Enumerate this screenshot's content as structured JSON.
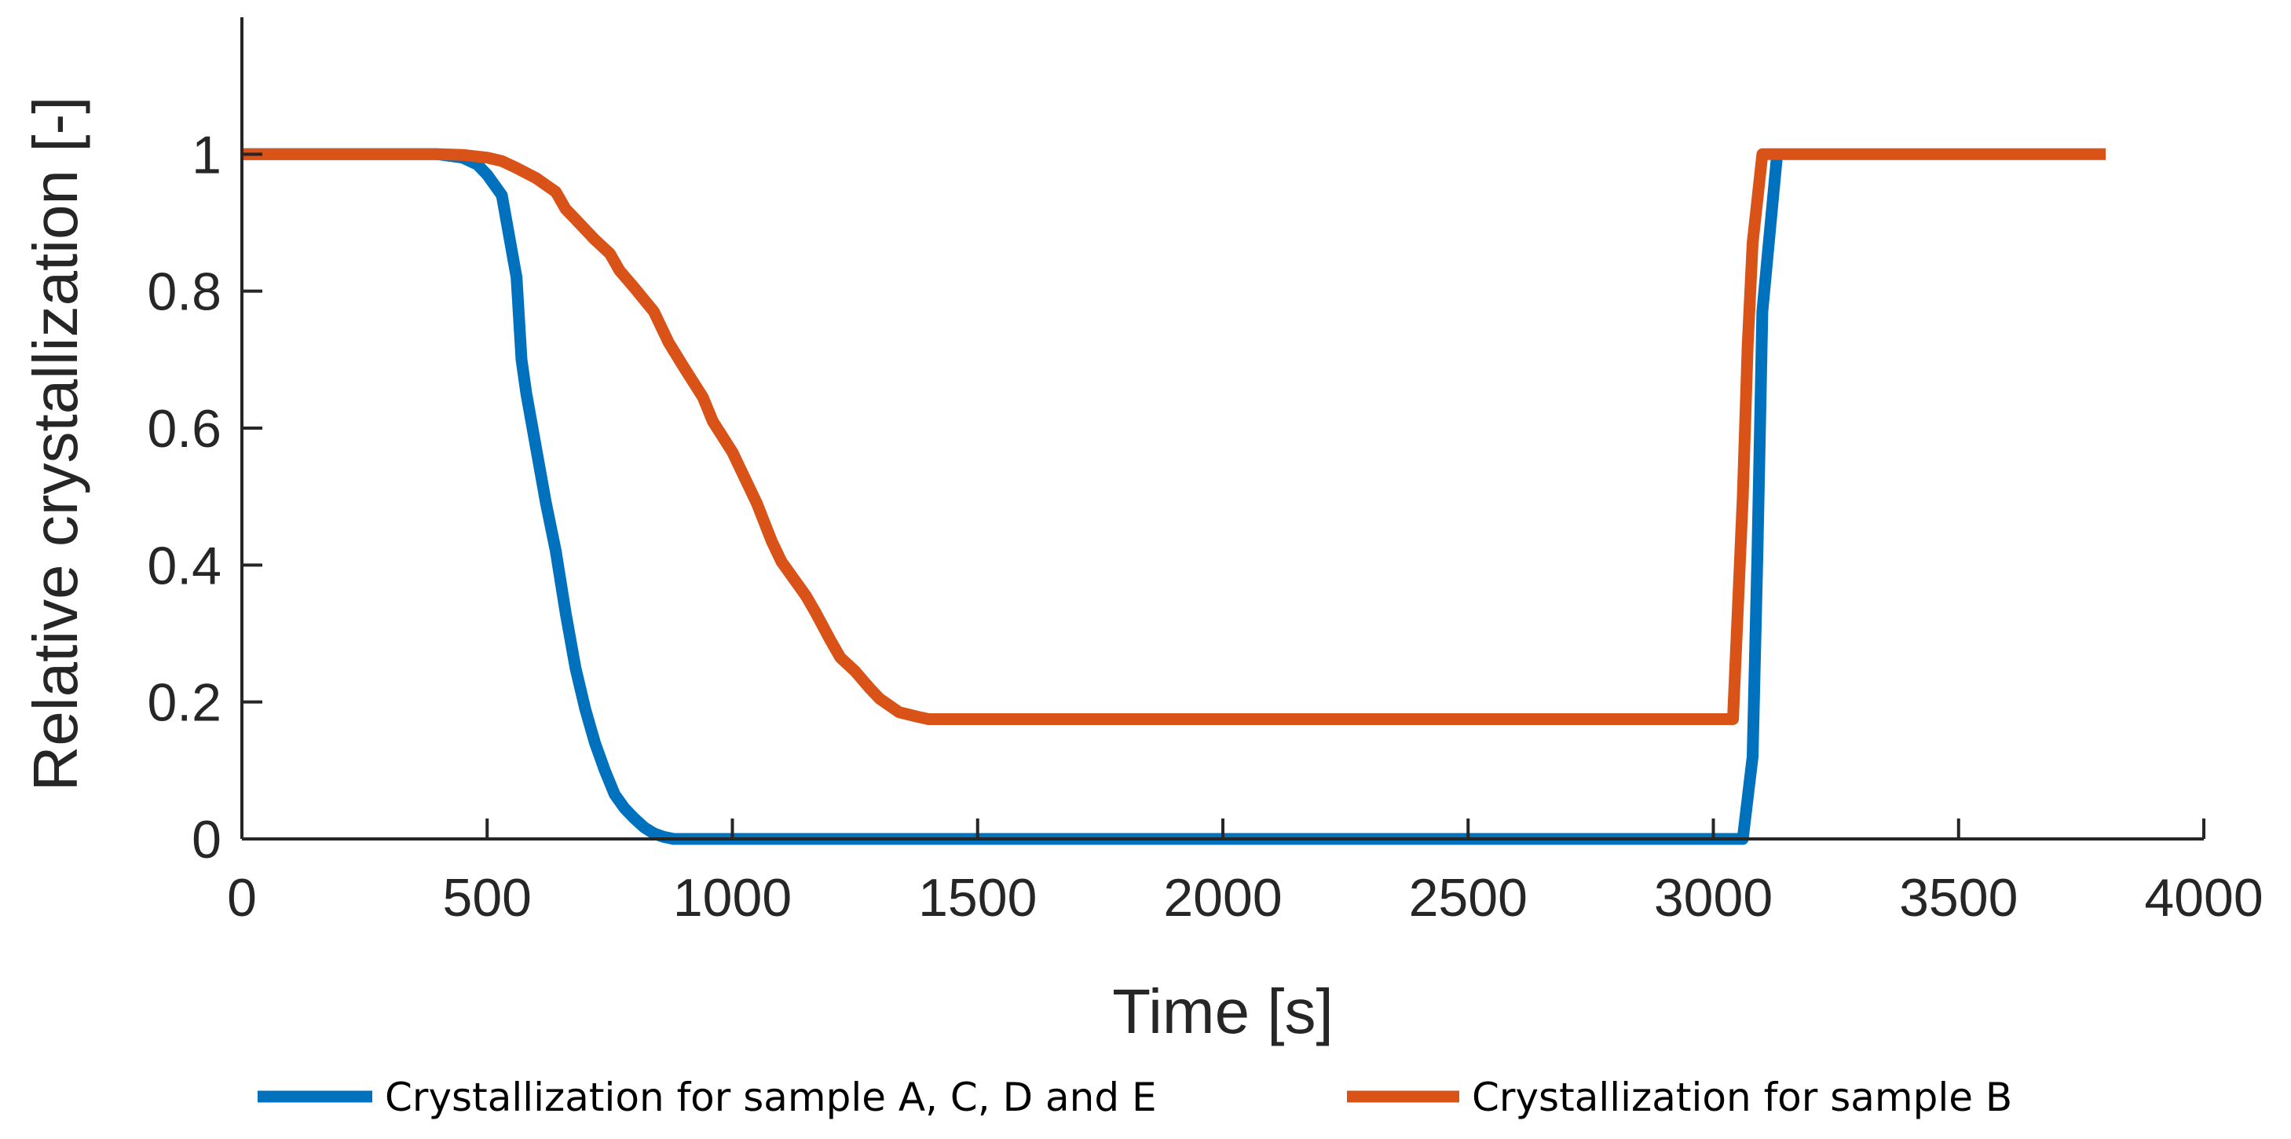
{
  "chart_data": {
    "type": "line",
    "title": "",
    "xlabel": "Time [s]",
    "ylabel": "Relative crystallization [-]",
    "xlim": [
      0,
      4000
    ],
    "ylim": [
      0,
      1.2
    ],
    "grid": false,
    "legend_position": "bottom",
    "xticks": [
      {
        "value": 0,
        "label": "0"
      },
      {
        "value": 500,
        "label": "500"
      },
      {
        "value": 1000,
        "label": "1000"
      },
      {
        "value": 1500,
        "label": "1500"
      },
      {
        "value": 2000,
        "label": "2000"
      },
      {
        "value": 2500,
        "label": "2500"
      },
      {
        "value": 3000,
        "label": "3000"
      },
      {
        "value": 3500,
        "label": "3500"
      },
      {
        "value": 4000,
        "label": "4000"
      }
    ],
    "yticks": [
      {
        "value": 0,
        "label": "0"
      },
      {
        "value": 0.2,
        "label": "0.2"
      },
      {
        "value": 0.4,
        "label": "0.4"
      },
      {
        "value": 0.6,
        "label": "0.6"
      },
      {
        "value": 0.8,
        "label": "0.8"
      },
      {
        "value": 1,
        "label": "1"
      }
    ],
    "series": [
      {
        "name": "Crystallization for sample A, C, D and E",
        "color": "#0072BD",
        "x": [
          0,
          400,
          450,
          480,
          500,
          530,
          560,
          570,
          580,
          600,
          620,
          640,
          660,
          680,
          700,
          720,
          740,
          760,
          780,
          800,
          820,
          840,
          860,
          880,
          900,
          1000,
          1500,
          2000,
          2500,
          3000,
          3050,
          3060,
          3080,
          3090,
          3100,
          3130
        ],
        "y": [
          1,
          1,
          0.995,
          0.985,
          0.97,
          0.94,
          0.82,
          0.7,
          0.65,
          0.57,
          0.49,
          0.42,
          0.33,
          0.25,
          0.19,
          0.14,
          0.1,
          0.065,
          0.045,
          0.03,
          0.017,
          0.008,
          0.003,
          0,
          0,
          0,
          0,
          0,
          0,
          0,
          0,
          0,
          0.12,
          0.42,
          0.77,
          1
        ]
      },
      {
        "name": "Crystallization for sample B",
        "color": "#D95319",
        "x": [
          0,
          400,
          450,
          500,
          530,
          560,
          600,
          640,
          660,
          680,
          720,
          750,
          770,
          800,
          840,
          870,
          900,
          940,
          960,
          1000,
          1050,
          1080,
          1100,
          1150,
          1170,
          1200,
          1220,
          1250,
          1280,
          1300,
          1340,
          1380,
          1400,
          1500,
          2000,
          2500,
          3000,
          3040,
          3060,
          3070,
          3080,
          3100,
          3200,
          3800
        ],
        "y": [
          1,
          1,
          0.999,
          0.995,
          0.99,
          0.98,
          0.965,
          0.945,
          0.92,
          0.905,
          0.875,
          0.855,
          0.83,
          0.805,
          0.77,
          0.725,
          0.69,
          0.645,
          0.61,
          0.565,
          0.49,
          0.435,
          0.405,
          0.355,
          0.33,
          0.29,
          0.265,
          0.245,
          0.22,
          0.205,
          0.185,
          0.178,
          0.175,
          0.175,
          0.175,
          0.175,
          0.175,
          0.175,
          0.5,
          0.72,
          0.87,
          1,
          1,
          1
        ]
      }
    ]
  }
}
